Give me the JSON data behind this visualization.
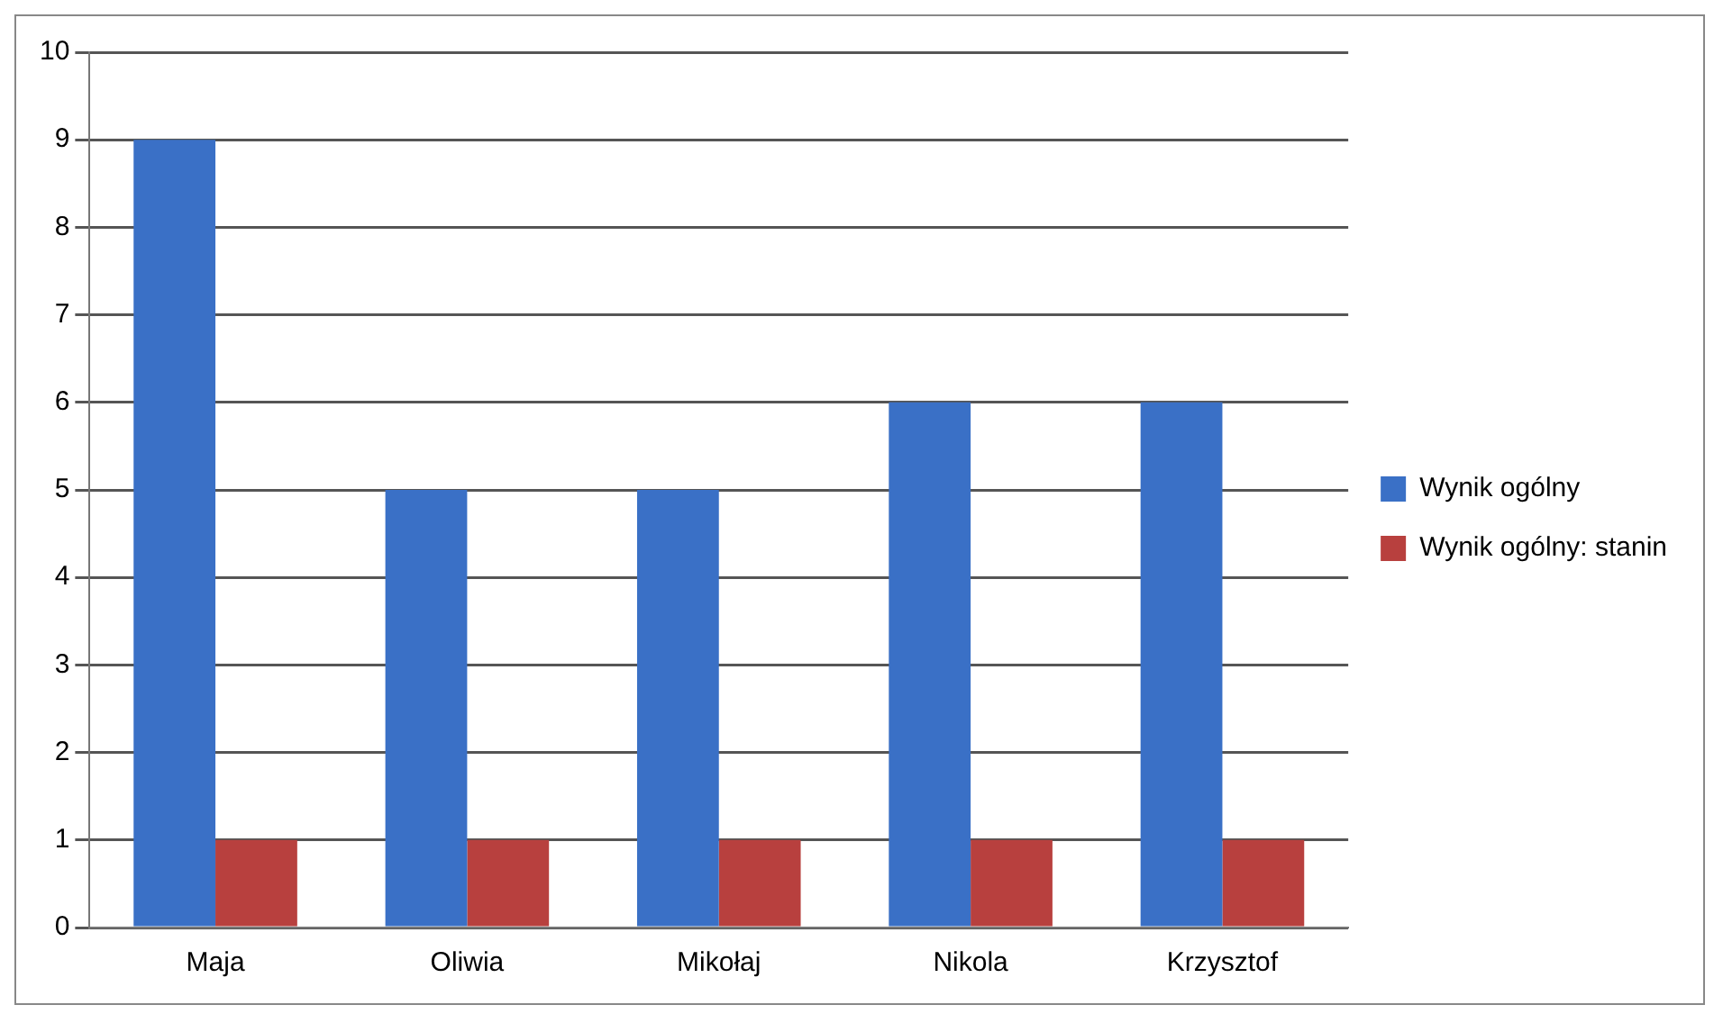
{
  "chart_data": {
    "type": "bar",
    "categories": [
      "Maja",
      "Oliwia",
      "Mikołaj",
      "Nikola",
      "Krzysztof"
    ],
    "series": [
      {
        "name": "Wynik ogólny",
        "color": "#3a70c6",
        "values": [
          9,
          5,
          5,
          6,
          6
        ]
      },
      {
        "name": "Wynik ogólny: stanin",
        "color": "#b8403e",
        "values": [
          1,
          1,
          1,
          1,
          1
        ]
      }
    ],
    "ylim": [
      0,
      10
    ],
    "yticks": [
      0,
      1,
      2,
      3,
      4,
      5,
      6,
      7,
      8,
      9,
      10
    ],
    "grid": "y",
    "legend": "right"
  }
}
